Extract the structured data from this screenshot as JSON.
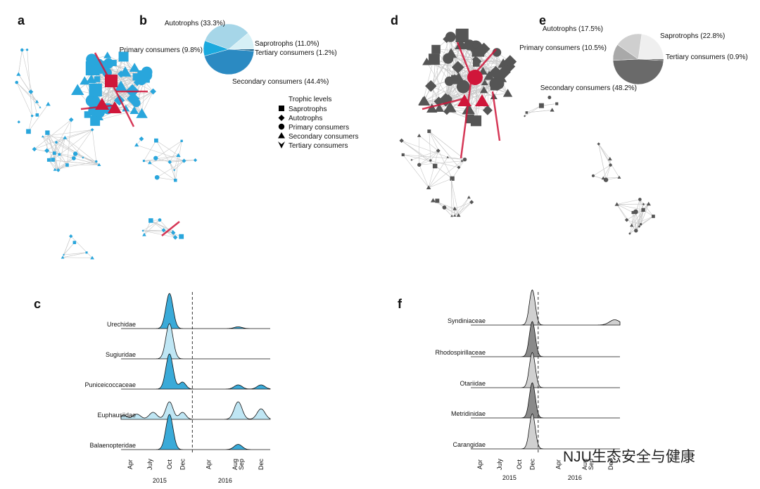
{
  "panels": [
    "a",
    "b",
    "c",
    "d",
    "e",
    "f"
  ],
  "watermark": "NJU生态安全与健康",
  "legend": {
    "title": "Trophic levels",
    "items": [
      "Saprotrophs",
      "Autotrophs",
      "Primary consumers",
      "Secondary consumers",
      "Tertiary consumers"
    ]
  },
  "chart_data": [
    {
      "type": "pie",
      "categories": [
        "Saprotrophs",
        "Tertiary consumers",
        "Secondary consumers",
        "Primary consumers",
        "Autotrophs"
      ],
      "values": [
        11.0,
        1.2,
        44.4,
        9.8,
        33.3
      ],
      "value_labels": [
        "(11.0%)",
        "(1.2%)",
        "(44.4%)",
        "(9.8%)",
        "(33.3%)"
      ],
      "colors": [
        "#d6f0f6",
        "#0d5a86",
        "#2b8ac2",
        "#1aa9de",
        "#a6d6e8"
      ]
    },
    {
      "type": "pie",
      "categories": [
        "Saprotrophs",
        "Tertiary consumers",
        "Secondary consumers",
        "Primary consumers",
        "Autotrophs"
      ],
      "values": [
        22.8,
        0.9,
        48.2,
        10.5,
        17.5
      ],
      "value_labels": [
        "(22.8%)",
        "(0.9%)",
        "(48.2%)",
        "(10.5%)",
        "(17.5%)"
      ],
      "colors": [
        "#efefef",
        "#333333",
        "#6a6a6a",
        "#a9a9a9",
        "#cfcfcf"
      ]
    },
    {
      "type": "ridgeline",
      "xlim": [
        2.6,
        25.4
      ],
      "xticks": [
        {
          "value": 4,
          "label": "Apr"
        },
        {
          "value": 7,
          "label": "July"
        },
        {
          "value": 10,
          "label": "Oct"
        },
        {
          "value": 12,
          "label": "Dec"
        },
        {
          "value": 16,
          "label": "Apr"
        },
        {
          "value": 20,
          "label": "Aug"
        },
        {
          "value": 21,
          "label": "Sep"
        },
        {
          "value": 24,
          "label": "Dec"
        }
      ],
      "years": [
        {
          "value": 8.5,
          "label": "2015"
        },
        {
          "value": 18.5,
          "label": "2016"
        }
      ],
      "divider": 13.5,
      "series": [
        {
          "name": "Urechidae",
          "color": "#3aaad8",
          "peaks": [
            {
              "x": 10,
              "height": 1,
              "width": 0.55
            },
            {
              "x": 20.5,
              "height": 0.05,
              "width": 0.6
            }
          ]
        },
        {
          "name": "Sugiuridae",
          "color": "#bfe6f4",
          "peaks": [
            {
              "x": 10,
              "height": 1,
              "width": 0.55
            }
          ]
        },
        {
          "name": "Puniceicoccaceae",
          "color": "#3aaad8",
          "peaks": [
            {
              "x": 10,
              "height": 1,
              "width": 0.55
            },
            {
              "x": 12,
              "height": 0.2,
              "width": 0.5
            },
            {
              "x": 20.5,
              "height": 0.12,
              "width": 0.6
            },
            {
              "x": 24,
              "height": 0.12,
              "width": 0.6
            }
          ]
        },
        {
          "name": "Euphausiidae",
          "color": "#bfe6f4",
          "peaks": [
            {
              "x": 3,
              "height": 0.12,
              "width": 0.5
            },
            {
              "x": 5,
              "height": 0.15,
              "width": 0.6
            },
            {
              "x": 7.5,
              "height": 0.2,
              "width": 0.6
            },
            {
              "x": 10,
              "height": 0.5,
              "width": 0.55
            },
            {
              "x": 12,
              "height": 0.2,
              "width": 0.5
            },
            {
              "x": 20.5,
              "height": 0.5,
              "width": 0.6
            },
            {
              "x": 24,
              "height": 0.3,
              "width": 0.6
            }
          ]
        },
        {
          "name": "Balaenopteridae",
          "color": "#3aaad8",
          "peaks": [
            {
              "x": 10,
              "height": 1,
              "width": 0.55
            },
            {
              "x": 20.5,
              "height": 0.15,
              "width": 0.6
            }
          ]
        }
      ]
    },
    {
      "type": "ridgeline",
      "xlim": [
        2.6,
        25.4
      ],
      "xticks": [
        {
          "value": 4,
          "label": "Apr"
        },
        {
          "value": 7,
          "label": "July"
        },
        {
          "value": 10,
          "label": "Oct"
        },
        {
          "value": 12,
          "label": "Dec"
        },
        {
          "value": 16,
          "label": "Apr"
        },
        {
          "value": 20,
          "label": "Aug"
        },
        {
          "value": 21,
          "label": "Sep"
        },
        {
          "value": 24,
          "label": "Dec"
        }
      ],
      "years": [
        {
          "value": 8.5,
          "label": "2015"
        },
        {
          "value": 18.5,
          "label": "2016"
        }
      ],
      "divider": 12.9,
      "series": [
        {
          "name": "Syndiniaceae",
          "color": "#d0d0d0",
          "peaks": [
            {
              "x": 12,
              "height": 1,
              "width": 0.45
            },
            {
              "x": 24.6,
              "height": 0.15,
              "width": 0.8
            }
          ]
        },
        {
          "name": "Rhodospirillaceae",
          "color": "#8a8a8a",
          "peaks": [
            {
              "x": 12,
              "height": 1,
              "width": 0.45
            }
          ]
        },
        {
          "name": "Otariidae",
          "color": "#d0d0d0",
          "peaks": [
            {
              "x": 12,
              "height": 1,
              "width": 0.45
            }
          ]
        },
        {
          "name": "Metridinidae",
          "color": "#8a8a8a",
          "peaks": [
            {
              "x": 12,
              "height": 1,
              "width": 0.45
            }
          ]
        },
        {
          "name": "Carangidae",
          "color": "#d0d0d0",
          "peaks": [
            {
              "x": 12,
              "height": 1,
              "width": 0.45
            }
          ]
        }
      ]
    }
  ]
}
